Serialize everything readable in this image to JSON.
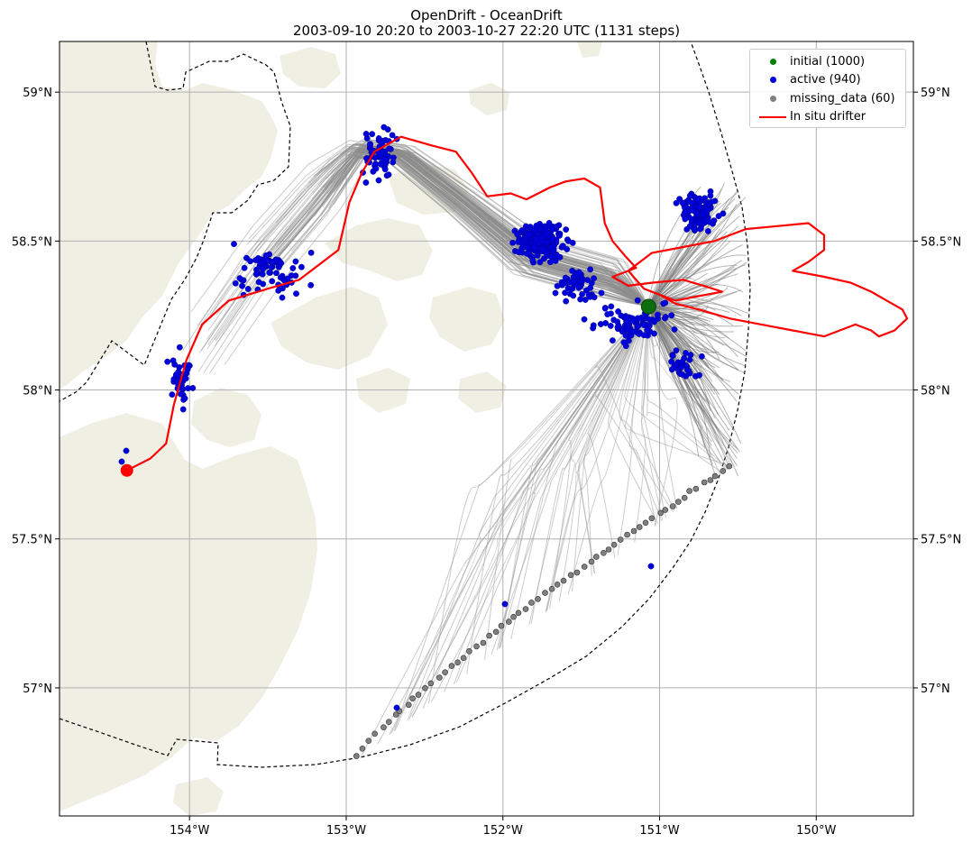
{
  "title": {
    "line1": "OpenDrift - OceanDrift",
    "line2": "2003-09-10 20:20 to 2003-10-27 22:20 UTC (1131 steps)"
  },
  "chart_data": {
    "type": "map",
    "projection": "geographic (lon/lat)",
    "lon_range": [
      -154.83,
      -149.38
    ],
    "lat_range": [
      56.57,
      59.17
    ],
    "x_ticks": [
      {
        "value": -154,
        "label": "154°W"
      },
      {
        "value": -153,
        "label": "153°W"
      },
      {
        "value": -152,
        "label": "152°W"
      },
      {
        "value": -151,
        "label": "151°W"
      },
      {
        "value": -150,
        "label": "150°W"
      }
    ],
    "y_ticks": [
      {
        "value": 57.0,
        "label": "57°N"
      },
      {
        "value": 57.5,
        "label": "57.5°N"
      },
      {
        "value": 58.0,
        "label": "58°N"
      },
      {
        "value": 58.5,
        "label": "58.5°N"
      },
      {
        "value": 59.0,
        "label": "59°N"
      }
    ],
    "grid": true,
    "legend": {
      "position": "top-right",
      "entries": [
        {
          "label": "initial (1000)",
          "color": "#008000",
          "kind": "marker"
        },
        {
          "label": "active (940)",
          "color": "#0000dd",
          "kind": "marker"
        },
        {
          "label": "missing_data (60)",
          "color": "#808080",
          "kind": "marker"
        },
        {
          "label": "In situ drifter",
          "color": "#ff0000",
          "kind": "line"
        }
      ]
    },
    "initial_position": {
      "lon": -151.07,
      "lat": 58.28
    },
    "drifter_track": [
      [
        -154.4,
        57.73
      ],
      [
        -154.25,
        57.77
      ],
      [
        -154.15,
        57.82
      ],
      [
        -154.1,
        57.95
      ],
      [
        -154.02,
        58.1
      ],
      [
        -153.92,
        58.22
      ],
      [
        -153.75,
        58.3
      ],
      [
        -153.5,
        58.34
      ],
      [
        -153.3,
        58.37
      ],
      [
        -153.05,
        58.47
      ],
      [
        -152.98,
        58.63
      ],
      [
        -152.9,
        58.73
      ],
      [
        -152.82,
        58.8
      ],
      [
        -152.65,
        58.85
      ],
      [
        -152.45,
        58.82
      ],
      [
        -152.3,
        58.8
      ],
      [
        -152.2,
        58.73
      ],
      [
        -152.1,
        58.65
      ],
      [
        -151.95,
        58.66
      ],
      [
        -151.85,
        58.64
      ],
      [
        -151.7,
        58.68
      ],
      [
        -151.6,
        58.7
      ],
      [
        -151.48,
        58.71
      ],
      [
        -151.38,
        58.68
      ],
      [
        -151.35,
        58.56
      ],
      [
        -151.3,
        58.5
      ],
      [
        -151.22,
        58.45
      ],
      [
        -151.15,
        58.41
      ],
      [
        -151.3,
        58.38
      ],
      [
        -151.2,
        58.35
      ],
      [
        -151.05,
        58.36
      ],
      [
        -150.85,
        58.37
      ],
      [
        -150.72,
        58.35
      ],
      [
        -150.6,
        58.33
      ],
      [
        -150.7,
        58.32
      ],
      [
        -150.9,
        58.3
      ],
      [
        -151.1,
        58.34
      ],
      [
        -151.2,
        58.4
      ],
      [
        -151.05,
        58.46
      ],
      [
        -150.85,
        58.48
      ],
      [
        -150.65,
        58.5
      ],
      [
        -150.45,
        58.54
      ],
      [
        -150.25,
        58.55
      ],
      [
        -150.05,
        58.56
      ],
      [
        -149.95,
        58.52
      ],
      [
        -149.95,
        58.47
      ],
      [
        -150.05,
        58.43
      ],
      [
        -150.15,
        58.4
      ],
      [
        -149.95,
        58.38
      ],
      [
        -149.78,
        58.36
      ],
      [
        -149.65,
        58.33
      ],
      [
        -149.55,
        58.3
      ],
      [
        -149.45,
        58.27
      ],
      [
        -149.42,
        58.24
      ],
      [
        -149.5,
        58.2
      ],
      [
        -149.6,
        58.18
      ],
      [
        -149.65,
        58.2
      ],
      [
        -149.75,
        58.22
      ],
      [
        -149.95,
        58.18
      ],
      [
        -150.15,
        58.2
      ],
      [
        -150.35,
        58.22
      ],
      [
        -150.55,
        58.24
      ],
      [
        -150.75,
        58.27
      ],
      [
        -150.9,
        58.29
      ],
      [
        -151.0,
        58.32
      ],
      [
        -151.1,
        58.34
      ]
    ],
    "drifter_end": {
      "lon": -154.4,
      "lat": 57.73
    }
  }
}
